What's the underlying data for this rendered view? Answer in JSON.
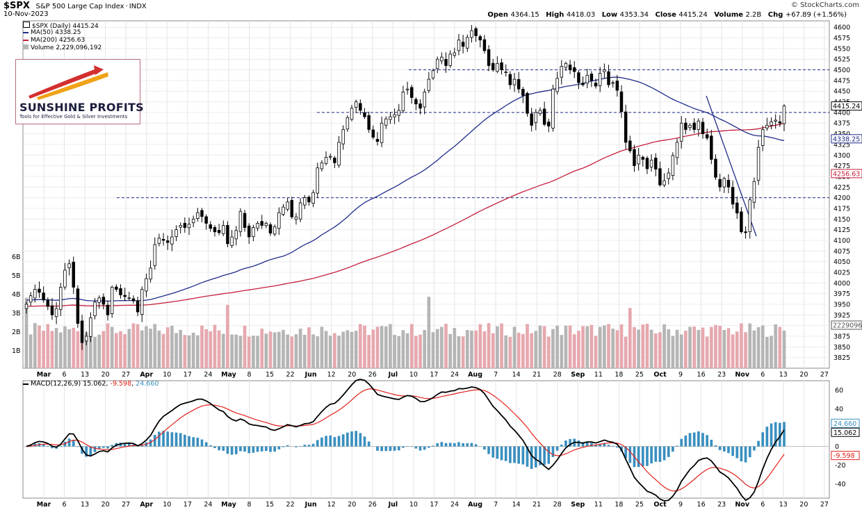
{
  "header": {
    "symbol": "$SPX",
    "name": "S&P 500 Large Cap Index",
    "exchange": "INDX",
    "date": "10-Nov-2023",
    "open_label": "Open",
    "open": "4364.15",
    "high_label": "High",
    "high": "4418.03",
    "low_label": "Low",
    "low": "4353.34",
    "close_label": "Close",
    "close": "4415.24",
    "volume_label": "Volume",
    "volume": "2.2B",
    "chg_label": "Chg",
    "chg": "+67.89 (+1.56%)",
    "credit": "© StockCharts.com"
  },
  "legend": {
    "price": "$SPX (Daily) 4415.24",
    "ma50": "MA(50) 4338.25",
    "ma200": "MA(200) 4256.63",
    "volume": "Volume 2,229,096,192",
    "macd_name": "MACD(12,26,9)",
    "macd_value": "15.062",
    "signal_value": "-9.598",
    "hist_value": "24.660"
  },
  "logo": {
    "title": "SUNSHINE PROFITS",
    "tagline": "Tools for Effective Gold & Silver Investments"
  },
  "colors": {
    "up": "#ffffff",
    "down": "#000000",
    "ma50": "#1f2b8a",
    "ma200": "#c41e3a",
    "vol_up": "#b5b5b5",
    "vol_down": "#e6a8ae",
    "macd": "#000000",
    "signal": "#e0201b",
    "hist": "#3a8fbf",
    "hline": "#1f2b8a"
  },
  "chart_data": [
    {
      "type": "candlestick",
      "title": "$SPX S&P 500 Large Cap Index",
      "ylim": [
        3800,
        4615
      ],
      "y_ticks": [
        3825,
        3850,
        3875,
        3900,
        3925,
        3950,
        3975,
        4000,
        4025,
        4050,
        4075,
        4100,
        4125,
        4150,
        4175,
        4200,
        4225,
        4250,
        4275,
        4300,
        4325,
        4350,
        4375,
        4400,
        4425,
        4450,
        4475,
        4500,
        4525,
        4550,
        4575,
        4600
      ],
      "volume_ticks": [
        "1B",
        "2B",
        "3B",
        "4B",
        "5B",
        "6B"
      ],
      "x_tick_labels": [
        "Mar",
        "6",
        "13",
        "20",
        "27",
        "Apr",
        "10",
        "17",
        "24",
        "May",
        "8",
        "15",
        "22",
        "Jun",
        "12",
        "20",
        "26",
        "Jul",
        "10",
        "17",
        "24",
        "Aug",
        "7",
        "14",
        "21",
        "28",
        "Sep",
        "11",
        "18",
        "25",
        "Oct",
        "9",
        "16",
        "23",
        "Nov",
        "6",
        "13",
        "20",
        "27"
      ],
      "horizontal_levels": [
        4200,
        4400,
        4500
      ],
      "price_labels": {
        "close": "4415.24",
        "ma50": "4338.25",
        "ma200": "4256.63",
        "volume": "2229096"
      },
      "closes": [
        3950,
        3970,
        3985,
        3978,
        3960,
        3945,
        3925,
        3940,
        3990,
        4030,
        4045,
        3990,
        3905,
        3860,
        3875,
        3918,
        3955,
        3965,
        3950,
        3925,
        3990,
        3985,
        3972,
        3968,
        3965,
        3958,
        3932,
        3985,
        4010,
        4035,
        4090,
        4105,
        4100,
        4095,
        4108,
        4125,
        4135,
        4130,
        4138,
        4150,
        4165,
        4156,
        4140,
        4128,
        4120,
        4118,
        4135,
        4092,
        4108,
        4123,
        4168,
        4130,
        4108,
        4130,
        4140,
        4135,
        4140,
        4117,
        4132,
        4165,
        4178,
        4190,
        4155,
        4155,
        4188,
        4200,
        4190,
        4212,
        4270,
        4282,
        4295,
        4297,
        4282,
        4330,
        4360,
        4388,
        4410,
        4425,
        4405,
        4390,
        4360,
        4342,
        4332,
        4375,
        4385,
        4390,
        4395,
        4405,
        4448,
        4455,
        4435,
        4420,
        4410,
        4448,
        4478,
        4498,
        4525,
        4530,
        4510,
        4537,
        4540,
        4570,
        4555,
        4576,
        4592,
        4580,
        4570,
        4545,
        4510,
        4500,
        4515,
        4500,
        4495,
        4465,
        4478,
        4455,
        4440,
        4398,
        4370,
        4400,
        4405,
        4372,
        4368,
        4455,
        4480,
        4508,
        4515,
        4500,
        4496,
        4470,
        4465,
        4487,
        4475,
        4462,
        4492,
        4500,
        4465,
        4470,
        4452,
        4402,
        4330,
        4310,
        4275,
        4300,
        4290,
        4268,
        4288,
        4267,
        4230,
        4240,
        4258,
        4299,
        4330,
        4375,
        4360,
        4370,
        4360,
        4380,
        4350,
        4340,
        4290,
        4248,
        4225,
        4245,
        4225,
        4185,
        4164,
        4120,
        4118,
        4195,
        4238,
        4318,
        4360,
        4370,
        4378,
        4382,
        4375,
        4415.24
      ]
    },
    {
      "type": "line",
      "title": "MACD(12,26,9)",
      "ylim": [
        -55,
        70
      ],
      "y_ticks": [
        60,
        40,
        20,
        0,
        -20,
        -40
      ],
      "series": [
        {
          "name": "MACD(12,26,9)",
          "last": 15.062
        },
        {
          "name": "Signal",
          "last": -9.598
        },
        {
          "name": "Histogram",
          "last": 24.66
        }
      ]
    }
  ]
}
